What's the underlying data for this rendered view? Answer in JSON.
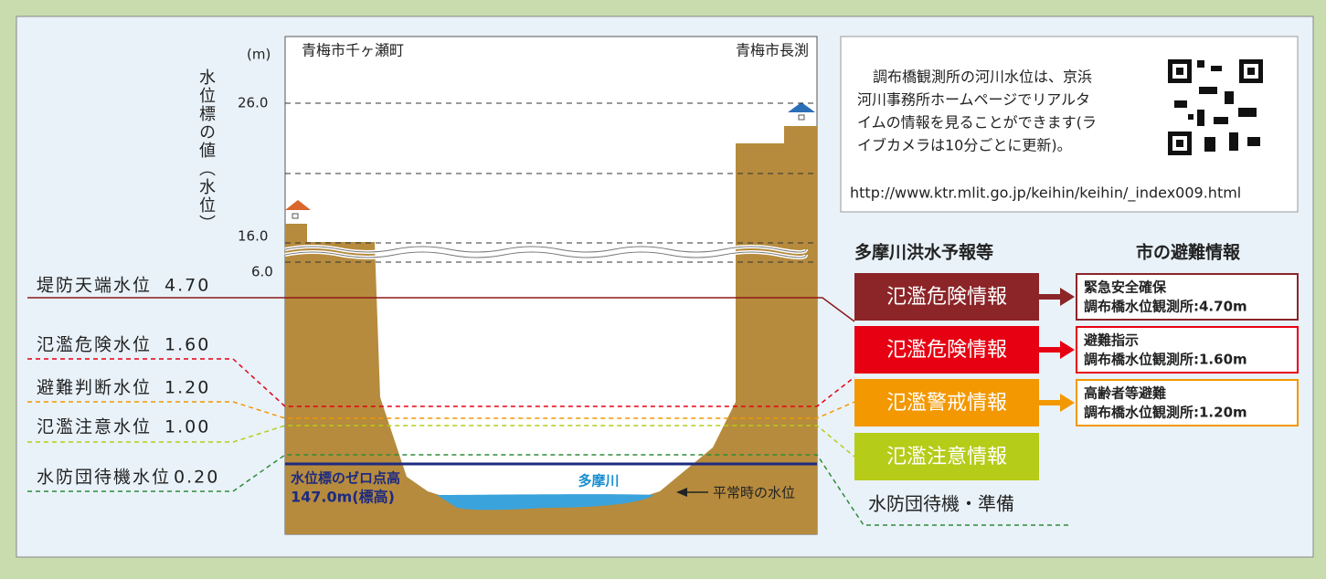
{
  "axis": {
    "unit": "(m)",
    "title": "水位標の値（水位）",
    "ticks": [
      "26.0",
      "16.0",
      "6.0"
    ]
  },
  "locations": {
    "left": "青梅市千ヶ瀬町",
    "right": "青梅市長渕"
  },
  "levels": [
    {
      "name": "堤防天端水位",
      "value": "4.70"
    },
    {
      "name": "氾濫危険水位",
      "value": "1.60"
    },
    {
      "name": "避難判断水位",
      "value": "1.20"
    },
    {
      "name": "氾濫注意水位",
      "value": "1.00"
    },
    {
      "name": "水防団待機水位",
      "value": "0.20"
    }
  ],
  "zero_point": {
    "title": "水位標のゼロ点高",
    "elevation": "147.0m(標高)"
  },
  "river": {
    "name": "多摩川",
    "normal_level": "平常時の水位"
  },
  "info": {
    "lines": [
      "調布橋観測所の河川水位は、京浜",
      "河川事務所ホームページでリアルタ",
      "イムの情報を見ることができます(ラ",
      "イブカメラは10分ごとに更新)。"
    ],
    "url": "http://www.ktr.mlit.go.jp/keihin/keihin/_index009.html"
  },
  "forecast": {
    "header": "多摩川洪水予報等",
    "items": [
      "氾濫危険情報",
      "氾濫危険情報",
      "氾濫警戒情報",
      "氾濫注意情報"
    ]
  },
  "evacuation": {
    "header": "市の避難情報",
    "items": [
      {
        "title": "緊急安全確保",
        "detail": "調布橋水位観測所:4.70m"
      },
      {
        "title": "避難指示",
        "detail": "調布橋水位観測所:1.60m"
      },
      {
        "title": "高齢者等避難",
        "detail": "調布橋水位観測所:1.20m"
      }
    ]
  },
  "standby": "水防団待機・準備"
}
